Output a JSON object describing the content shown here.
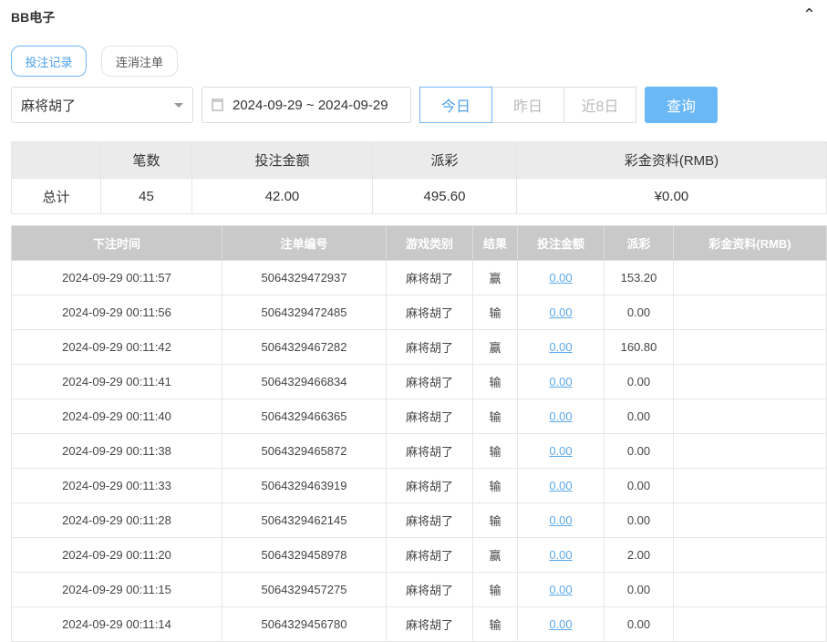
{
  "header": {
    "title": "BB电子",
    "collapse_icon": "chevron-up-icon"
  },
  "tabs": [
    {
      "label": "投注记录",
      "active": true
    },
    {
      "label": "连消注单",
      "active": false
    }
  ],
  "filters": {
    "game": "麻将胡了",
    "date_range": "2024-09-29 ~ 2024-09-29",
    "ranges": [
      "今日",
      "昨日",
      "近8日"
    ],
    "active_range": "今日",
    "query": "查询"
  },
  "summary": {
    "headers": [
      "",
      "笔数",
      "投注金额",
      "派彩",
      "彩金资料(RMB)"
    ],
    "row": [
      "总计",
      "45",
      "42.00",
      "495.60",
      "¥0.00"
    ]
  },
  "records": {
    "headers": [
      "下注时间",
      "注单编号",
      "游戏类别",
      "结果",
      "投注金额",
      "派彩",
      "彩金资料(RMB)"
    ],
    "rows": [
      [
        "2024-09-29 00:11:57",
        "5064329472937",
        "麻将胡了",
        "赢",
        "0.00",
        "153.20",
        ""
      ],
      [
        "2024-09-29 00:11:56",
        "5064329472485",
        "麻将胡了",
        "输",
        "0.00",
        "0.00",
        ""
      ],
      [
        "2024-09-29 00:11:42",
        "5064329467282",
        "麻将胡了",
        "赢",
        "0.00",
        "160.80",
        ""
      ],
      [
        "2024-09-29 00:11:41",
        "5064329466834",
        "麻将胡了",
        "输",
        "0.00",
        "0.00",
        ""
      ],
      [
        "2024-09-29 00:11:40",
        "5064329466365",
        "麻将胡了",
        "输",
        "0.00",
        "0.00",
        ""
      ],
      [
        "2024-09-29 00:11:38",
        "5064329465872",
        "麻将胡了",
        "输",
        "0.00",
        "0.00",
        ""
      ],
      [
        "2024-09-29 00:11:33",
        "5064329463919",
        "麻将胡了",
        "输",
        "0.00",
        "0.00",
        ""
      ],
      [
        "2024-09-29 00:11:28",
        "5064329462145",
        "麻将胡了",
        "输",
        "0.00",
        "0.00",
        ""
      ],
      [
        "2024-09-29 00:11:20",
        "5064329458978",
        "麻将胡了",
        "赢",
        "0.00",
        "2.00",
        ""
      ],
      [
        "2024-09-29 00:11:15",
        "5064329457275",
        "麻将胡了",
        "输",
        "0.00",
        "0.00",
        ""
      ],
      [
        "2024-09-29 00:11:14",
        "5064329456780",
        "麻将胡了",
        "输",
        "0.00",
        "0.00",
        ""
      ]
    ]
  }
}
